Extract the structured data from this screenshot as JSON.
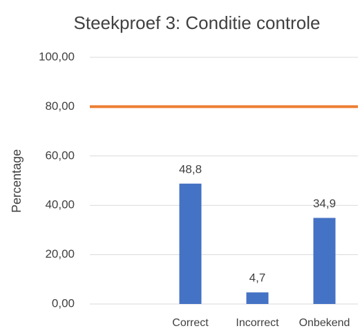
{
  "chart_data": {
    "type": "bar",
    "title": "Steekproef 3: Conditie controle",
    "y_label": "Percentage",
    "categories": [
      null,
      "Correct",
      "Incorrect",
      "Onbekend"
    ],
    "values": [
      null,
      48.8,
      4.7,
      34.9
    ],
    "value_labels": [
      null,
      "48,8",
      "4,7",
      "34,9"
    ],
    "color": "#4472c4",
    "reference_line": {
      "value": 80,
      "color": "#ed7d31"
    },
    "ylim": [
      0,
      100
    ],
    "yticks": [
      {
        "value": 0,
        "label": "0,00"
      },
      {
        "value": 20,
        "label": "20,00"
      },
      {
        "value": 40,
        "label": "40,00"
      },
      {
        "value": 60,
        "label": "60,00"
      },
      {
        "value": 80,
        "label": "80,00"
      },
      {
        "value": 100,
        "label": "100,00"
      }
    ],
    "grid": true
  }
}
